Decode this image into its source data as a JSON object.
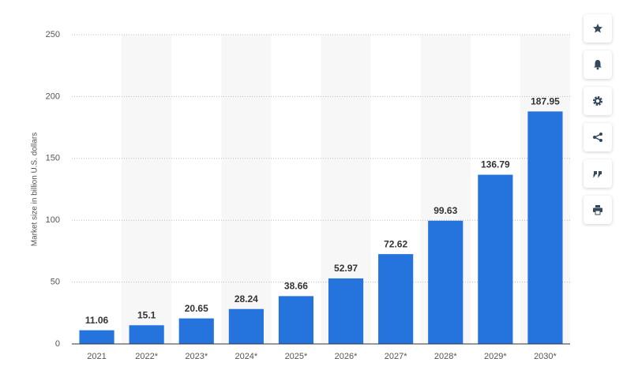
{
  "chart_data": {
    "type": "bar",
    "y_label": "Market size in billion U.S. dollars",
    "categories": [
      "2021",
      "2022*",
      "2023*",
      "2024*",
      "2025*",
      "2026*",
      "2027*",
      "2028*",
      "2029*",
      "2030*"
    ],
    "values": [
      11.06,
      15.1,
      20.65,
      28.24,
      38.66,
      52.97,
      72.62,
      99.63,
      136.79,
      187.95
    ],
    "color": "#2574de",
    "ylim": [
      0,
      250
    ],
    "yticks": [
      0,
      50,
      100,
      150,
      200,
      250
    ],
    "grid": true
  }
}
